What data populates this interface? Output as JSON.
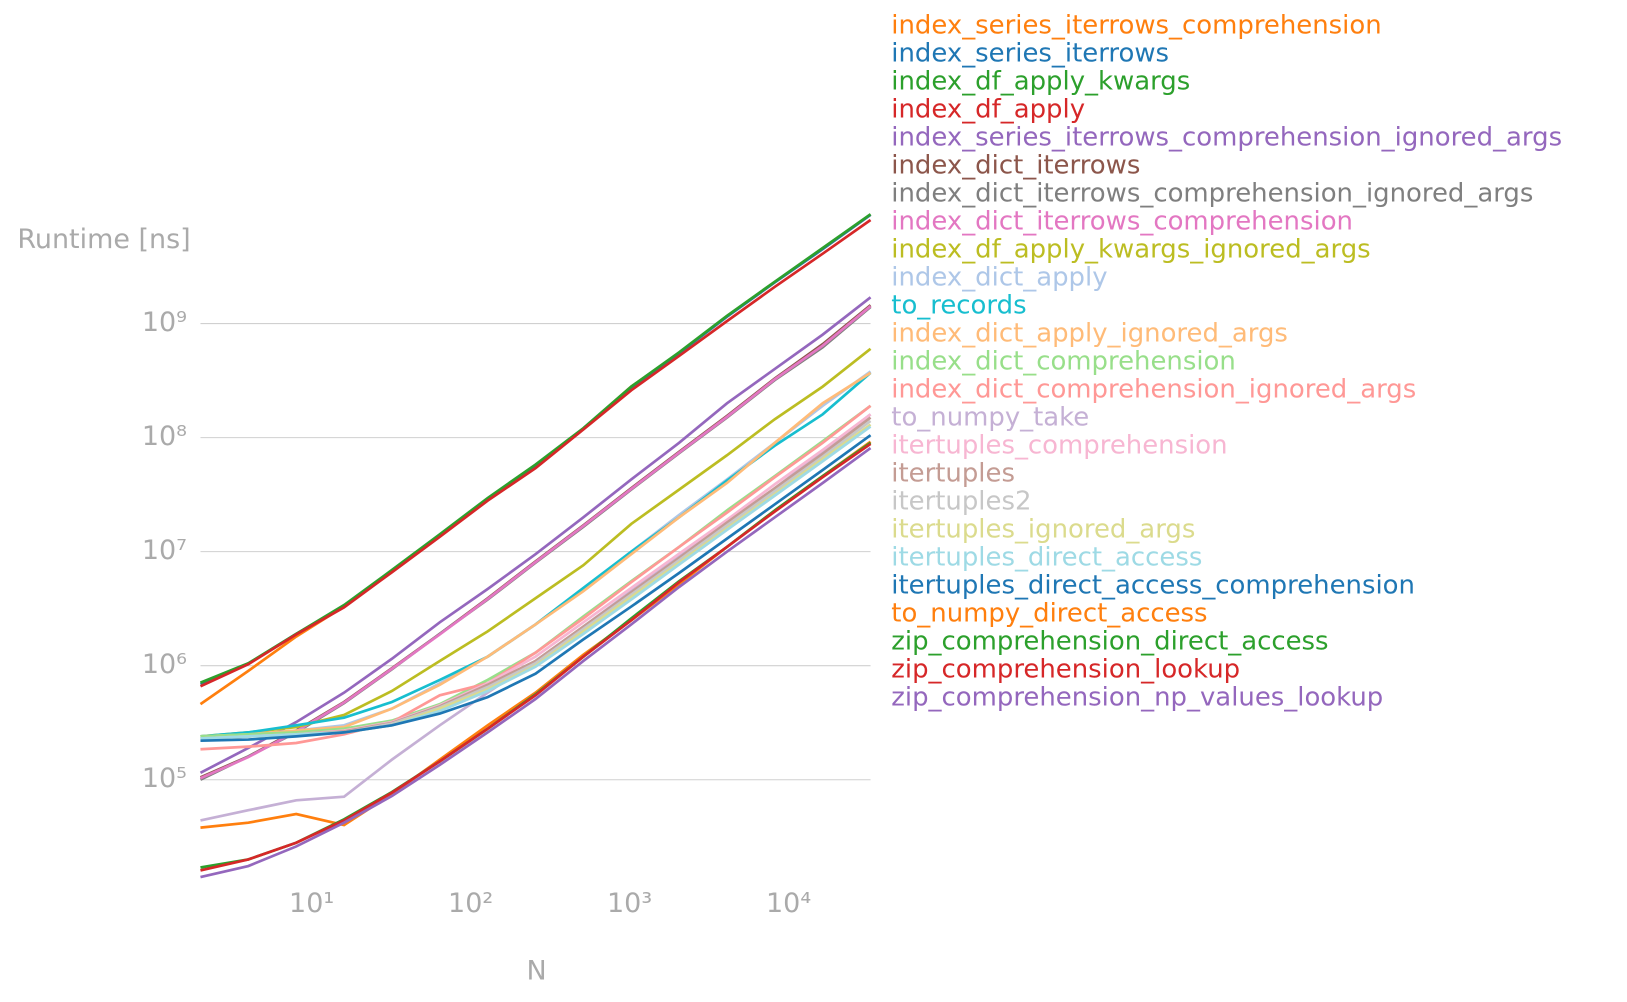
{
  "chart_data": {
    "type": "line",
    "x_label": "N",
    "y_label": "Runtime [ns]",
    "log_x": true,
    "log_y": true,
    "grid": true,
    "x": [
      2,
      4,
      8,
      16,
      32,
      64,
      128,
      256,
      512,
      1024,
      2048,
      4096,
      8192,
      16384,
      32768
    ],
    "xlim": [
      2,
      32768
    ],
    "ylim": [
      12500,
      10000000000
    ],
    "xticks": [
      {
        "value": 10,
        "label": "10¹"
      },
      {
        "value": 100,
        "label": "10²"
      },
      {
        "value": 1000,
        "label": "10³"
      },
      {
        "value": 10000,
        "label": "10⁴"
      }
    ],
    "yticks": [
      {
        "value": 100000,
        "label": "10⁵"
      },
      {
        "value": 1000000,
        "label": "10⁶"
      },
      {
        "value": 10000000,
        "label": "10⁷"
      },
      {
        "value": 100000000,
        "label": "10⁸"
      },
      {
        "value": 1000000000,
        "label": "10⁹"
      }
    ],
    "series": [
      {
        "name": "index_series_iterrows_comprehension",
        "color": "#ff7f0e",
        "values": [
          460000,
          900000,
          1800000,
          3300000,
          6800000,
          14000000,
          29000000,
          57000000,
          120000000,
          280000000,
          550000000,
          1150000000,
          2300000000,
          4500000000,
          9000000000
        ]
      },
      {
        "name": "index_series_iterrows",
        "color": "#1f77b4",
        "values": [
          690000,
          1040000,
          1900000,
          3300000,
          6800000,
          14000000,
          29000000,
          57000000,
          120000000,
          275000000,
          550000000,
          1150000000,
          2300000000,
          4500000000,
          9000000000
        ]
      },
      {
        "name": "index_df_apply_kwargs",
        "color": "#2ca02c",
        "values": [
          710000,
          1050000,
          1900000,
          3400000,
          6900000,
          14200000,
          29500000,
          58000000,
          121000000,
          280000000,
          560000000,
          1170000000,
          2330000000,
          4600000000,
          9100000000
        ]
      },
      {
        "name": "index_df_apply",
        "color": "#d62728",
        "values": [
          660000,
          1030000,
          1880000,
          3250000,
          6600000,
          13500000,
          28000000,
          54000000,
          118000000,
          260000000,
          520000000,
          1050000000,
          2100000000,
          4100000000,
          8100000000
        ]
      },
      {
        "name": "index_series_iterrows_comprehension_ignored_args",
        "color": "#9467bd",
        "values": [
          115000,
          190000,
          320000,
          580000,
          1150000,
          2400000,
          4700000,
          9500000,
          20000000,
          43000000,
          90000000,
          200000000,
          400000000,
          800000000,
          1700000000
        ]
      },
      {
        "name": "index_dict_iterrows",
        "color": "#8c564b",
        "values": [
          105000,
          160000,
          270000,
          480000,
          950000,
          1900000,
          3900000,
          8200000,
          17000000,
          36000000,
          75000000,
          155000000,
          330000000,
          660000000,
          1450000000
        ]
      },
      {
        "name": "index_dict_iterrows_comprehension_ignored_args",
        "color": "#7f7f7f",
        "values": [
          100000,
          160000,
          260000,
          470000,
          930000,
          1900000,
          3800000,
          8000000,
          16500000,
          35000000,
          73000000,
          150000000,
          320000000,
          620000000,
          1400000000
        ]
      },
      {
        "name": "index_dict_iterrows_comprehension",
        "color": "#e377c2",
        "values": [
          103000,
          158000,
          265000,
          475000,
          940000,
          1880000,
          3850000,
          8100000,
          16800000,
          35500000,
          74000000,
          152000000,
          325000000,
          640000000,
          1420000000
        ]
      },
      {
        "name": "index_df_apply_kwargs_ignored_args",
        "color": "#bcbd22",
        "values": [
          240000,
          260000,
          290000,
          370000,
          600000,
          1100000,
          2000000,
          3900000,
          7600000,
          17500000,
          35000000,
          70000000,
          145000000,
          280000000,
          600000000
        ]
      },
      {
        "name": "index_dict_apply",
        "color": "#aec7e8",
        "values": [
          240000,
          250000,
          270000,
          300000,
          420000,
          700000,
          1200000,
          2300000,
          4700000,
          10000000,
          21000000,
          43000000,
          90000000,
          190000000,
          380000000
        ]
      },
      {
        "name": "to_records",
        "color": "#17becf",
        "values": [
          240000,
          260000,
          300000,
          350000,
          480000,
          750000,
          1200000,
          2300000,
          4800000,
          10000000,
          20000000,
          42000000,
          85000000,
          160000000,
          370000000
        ]
      },
      {
        "name": "index_dict_apply_ignored_args",
        "color": "#ffbb78",
        "values": [
          240000,
          250000,
          270000,
          290000,
          420000,
          680000,
          1200000,
          2300000,
          4500000,
          9500000,
          20000000,
          40000000,
          90000000,
          200000000,
          370000000
        ]
      },
      {
        "name": "index_dict_comprehension",
        "color": "#98df8a",
        "values": [
          240000,
          250000,
          260000,
          280000,
          330000,
          460000,
          750000,
          1300000,
          2700000,
          5500000,
          11000000,
          23000000,
          46000000,
          93000000,
          190000000
        ]
      },
      {
        "name": "index_dict_comprehension_ignored_args",
        "color": "#ff9896",
        "values": [
          185000,
          195000,
          210000,
          250000,
          320000,
          550000,
          700000,
          1300000,
          2600000,
          5400000,
          11000000,
          22000000,
          45000000,
          90000000,
          190000000
        ]
      },
      {
        "name": "to_numpy_take",
        "color": "#c5b0d5",
        "values": [
          44000,
          54000,
          66000,
          71000,
          150000,
          300000,
          580000,
          1100000,
          2200000,
          4500000,
          9000000,
          18000000,
          36000000,
          75000000,
          160000000
        ]
      },
      {
        "name": "itertuples_comprehension",
        "color": "#f7b6d2",
        "values": [
          230000,
          240000,
          250000,
          270000,
          320000,
          450000,
          700000,
          1200000,
          2400000,
          4800000,
          9600000,
          19000000,
          39000000,
          78000000,
          160000000
        ]
      },
      {
        "name": "itertuples",
        "color": "#c49c94",
        "values": [
          230000,
          240000,
          250000,
          265000,
          315000,
          440000,
          680000,
          1100000,
          2200000,
          4400000,
          8800000,
          18000000,
          36000000,
          72000000,
          150000000
        ]
      },
      {
        "name": "itertuples2",
        "color": "#c7c7c7",
        "values": [
          230000,
          240000,
          250000,
          260000,
          310000,
          430000,
          650000,
          1050000,
          2100000,
          4200000,
          8400000,
          17000000,
          34000000,
          68000000,
          140000000
        ]
      },
      {
        "name": "itertuples_ignored_args",
        "color": "#dbdb8d",
        "values": [
          230000,
          240000,
          250000,
          260000,
          300000,
          420000,
          620000,
          1000000,
          2000000,
          4000000,
          8000000,
          16000000,
          32000000,
          65000000,
          130000000
        ]
      },
      {
        "name": "itertuples_direct_access",
        "color": "#9edae5",
        "values": [
          230000,
          240000,
          250000,
          260000,
          300000,
          400000,
          600000,
          980000,
          1900000,
          3800000,
          7700000,
          15500000,
          31000000,
          62000000,
          125000000
        ]
      },
      {
        "name": "itertuples_direct_access_comprehension",
        "color": "#1f77b4",
        "values": [
          220000,
          225000,
          240000,
          260000,
          300000,
          380000,
          530000,
          850000,
          1700000,
          3300000,
          6500000,
          13000000,
          26000000,
          52000000,
          105000000
        ]
      },
      {
        "name": "to_numpy_direct_access",
        "color": "#ff7f0e",
        "values": [
          38000,
          42000,
          50000,
          40000,
          75000,
          150000,
          300000,
          580000,
          1250000,
          2500000,
          5200000,
          11000000,
          23000000,
          46000000,
          92000000
        ]
      },
      {
        "name": "zip_comprehension_direct_access",
        "color": "#2ca02c",
        "values": [
          17000,
          20000,
          28000,
          45000,
          78000,
          145000,
          280000,
          560000,
          1200000,
          2600000,
          5500000,
          11000000,
          23000000,
          46000000,
          90000000
        ]
      },
      {
        "name": "zip_comprehension_lookup",
        "color": "#d62728",
        "values": [
          16000,
          20000,
          28000,
          44000,
          77000,
          145000,
          280000,
          550000,
          1200000,
          2500000,
          5400000,
          11000000,
          22500000,
          45000000,
          88000000
        ]
      },
      {
        "name": "zip_comprehension_np_values_lookup",
        "color": "#9467bd",
        "values": [
          14000,
          17500,
          26000,
          42000,
          72000,
          135000,
          260000,
          510000,
          1100000,
          2300000,
          4900000,
          10000000,
          20000000,
          40000000,
          81000000
        ]
      }
    ]
  }
}
